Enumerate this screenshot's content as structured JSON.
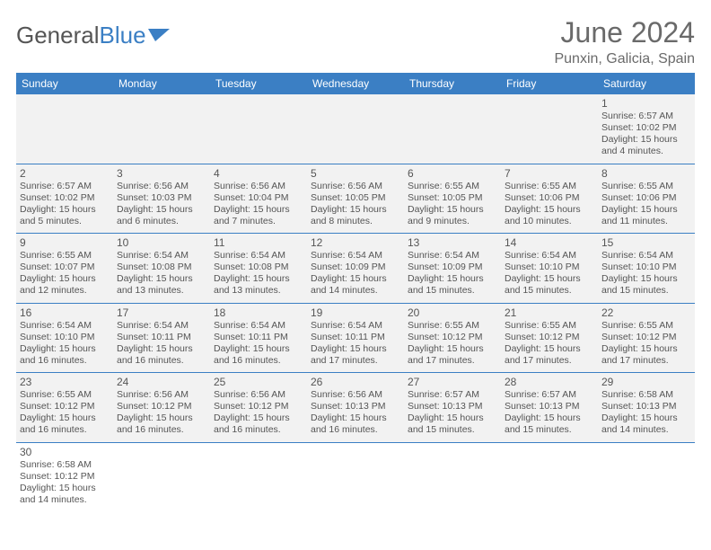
{
  "brand": {
    "name_a": "General",
    "name_b": "Blue",
    "color_a": "#555555",
    "color_b": "#3b7fc4"
  },
  "title": "June 2024",
  "location": "Punxin, Galicia, Spain",
  "colors": {
    "header_bg": "#3b7fc4",
    "header_text": "#ffffff",
    "row_bg": "#f2f2f2",
    "rule": "#3b7fc4",
    "text": "#555555"
  },
  "day_headers": [
    "Sunday",
    "Monday",
    "Tuesday",
    "Wednesday",
    "Thursday",
    "Friday",
    "Saturday"
  ],
  "weeks": [
    [
      null,
      null,
      null,
      null,
      null,
      null,
      {
        "n": "1",
        "sr": "Sunrise: 6:57 AM",
        "ss": "Sunset: 10:02 PM",
        "d1": "Daylight: 15 hours",
        "d2": "and 4 minutes."
      }
    ],
    [
      {
        "n": "2",
        "sr": "Sunrise: 6:57 AM",
        "ss": "Sunset: 10:02 PM",
        "d1": "Daylight: 15 hours",
        "d2": "and 5 minutes."
      },
      {
        "n": "3",
        "sr": "Sunrise: 6:56 AM",
        "ss": "Sunset: 10:03 PM",
        "d1": "Daylight: 15 hours",
        "d2": "and 6 minutes."
      },
      {
        "n": "4",
        "sr": "Sunrise: 6:56 AM",
        "ss": "Sunset: 10:04 PM",
        "d1": "Daylight: 15 hours",
        "d2": "and 7 minutes."
      },
      {
        "n": "5",
        "sr": "Sunrise: 6:56 AM",
        "ss": "Sunset: 10:05 PM",
        "d1": "Daylight: 15 hours",
        "d2": "and 8 minutes."
      },
      {
        "n": "6",
        "sr": "Sunrise: 6:55 AM",
        "ss": "Sunset: 10:05 PM",
        "d1": "Daylight: 15 hours",
        "d2": "and 9 minutes."
      },
      {
        "n": "7",
        "sr": "Sunrise: 6:55 AM",
        "ss": "Sunset: 10:06 PM",
        "d1": "Daylight: 15 hours",
        "d2": "and 10 minutes."
      },
      {
        "n": "8",
        "sr": "Sunrise: 6:55 AM",
        "ss": "Sunset: 10:06 PM",
        "d1": "Daylight: 15 hours",
        "d2": "and 11 minutes."
      }
    ],
    [
      {
        "n": "9",
        "sr": "Sunrise: 6:55 AM",
        "ss": "Sunset: 10:07 PM",
        "d1": "Daylight: 15 hours",
        "d2": "and 12 minutes."
      },
      {
        "n": "10",
        "sr": "Sunrise: 6:54 AM",
        "ss": "Sunset: 10:08 PM",
        "d1": "Daylight: 15 hours",
        "d2": "and 13 minutes."
      },
      {
        "n": "11",
        "sr": "Sunrise: 6:54 AM",
        "ss": "Sunset: 10:08 PM",
        "d1": "Daylight: 15 hours",
        "d2": "and 13 minutes."
      },
      {
        "n": "12",
        "sr": "Sunrise: 6:54 AM",
        "ss": "Sunset: 10:09 PM",
        "d1": "Daylight: 15 hours",
        "d2": "and 14 minutes."
      },
      {
        "n": "13",
        "sr": "Sunrise: 6:54 AM",
        "ss": "Sunset: 10:09 PM",
        "d1": "Daylight: 15 hours",
        "d2": "and 15 minutes."
      },
      {
        "n": "14",
        "sr": "Sunrise: 6:54 AM",
        "ss": "Sunset: 10:10 PM",
        "d1": "Daylight: 15 hours",
        "d2": "and 15 minutes."
      },
      {
        "n": "15",
        "sr": "Sunrise: 6:54 AM",
        "ss": "Sunset: 10:10 PM",
        "d1": "Daylight: 15 hours",
        "d2": "and 15 minutes."
      }
    ],
    [
      {
        "n": "16",
        "sr": "Sunrise: 6:54 AM",
        "ss": "Sunset: 10:10 PM",
        "d1": "Daylight: 15 hours",
        "d2": "and 16 minutes."
      },
      {
        "n": "17",
        "sr": "Sunrise: 6:54 AM",
        "ss": "Sunset: 10:11 PM",
        "d1": "Daylight: 15 hours",
        "d2": "and 16 minutes."
      },
      {
        "n": "18",
        "sr": "Sunrise: 6:54 AM",
        "ss": "Sunset: 10:11 PM",
        "d1": "Daylight: 15 hours",
        "d2": "and 16 minutes."
      },
      {
        "n": "19",
        "sr": "Sunrise: 6:54 AM",
        "ss": "Sunset: 10:11 PM",
        "d1": "Daylight: 15 hours",
        "d2": "and 17 minutes."
      },
      {
        "n": "20",
        "sr": "Sunrise: 6:55 AM",
        "ss": "Sunset: 10:12 PM",
        "d1": "Daylight: 15 hours",
        "d2": "and 17 minutes."
      },
      {
        "n": "21",
        "sr": "Sunrise: 6:55 AM",
        "ss": "Sunset: 10:12 PM",
        "d1": "Daylight: 15 hours",
        "d2": "and 17 minutes."
      },
      {
        "n": "22",
        "sr": "Sunrise: 6:55 AM",
        "ss": "Sunset: 10:12 PM",
        "d1": "Daylight: 15 hours",
        "d2": "and 17 minutes."
      }
    ],
    [
      {
        "n": "23",
        "sr": "Sunrise: 6:55 AM",
        "ss": "Sunset: 10:12 PM",
        "d1": "Daylight: 15 hours",
        "d2": "and 16 minutes."
      },
      {
        "n": "24",
        "sr": "Sunrise: 6:56 AM",
        "ss": "Sunset: 10:12 PM",
        "d1": "Daylight: 15 hours",
        "d2": "and 16 minutes."
      },
      {
        "n": "25",
        "sr": "Sunrise: 6:56 AM",
        "ss": "Sunset: 10:12 PM",
        "d1": "Daylight: 15 hours",
        "d2": "and 16 minutes."
      },
      {
        "n": "26",
        "sr": "Sunrise: 6:56 AM",
        "ss": "Sunset: 10:13 PM",
        "d1": "Daylight: 15 hours",
        "d2": "and 16 minutes."
      },
      {
        "n": "27",
        "sr": "Sunrise: 6:57 AM",
        "ss": "Sunset: 10:13 PM",
        "d1": "Daylight: 15 hours",
        "d2": "and 15 minutes."
      },
      {
        "n": "28",
        "sr": "Sunrise: 6:57 AM",
        "ss": "Sunset: 10:13 PM",
        "d1": "Daylight: 15 hours",
        "d2": "and 15 minutes."
      },
      {
        "n": "29",
        "sr": "Sunrise: 6:58 AM",
        "ss": "Sunset: 10:13 PM",
        "d1": "Daylight: 15 hours",
        "d2": "and 14 minutes."
      }
    ],
    [
      {
        "n": "30",
        "sr": "Sunrise: 6:58 AM",
        "ss": "Sunset: 10:12 PM",
        "d1": "Daylight: 15 hours",
        "d2": "and 14 minutes."
      },
      null,
      null,
      null,
      null,
      null,
      null
    ]
  ]
}
